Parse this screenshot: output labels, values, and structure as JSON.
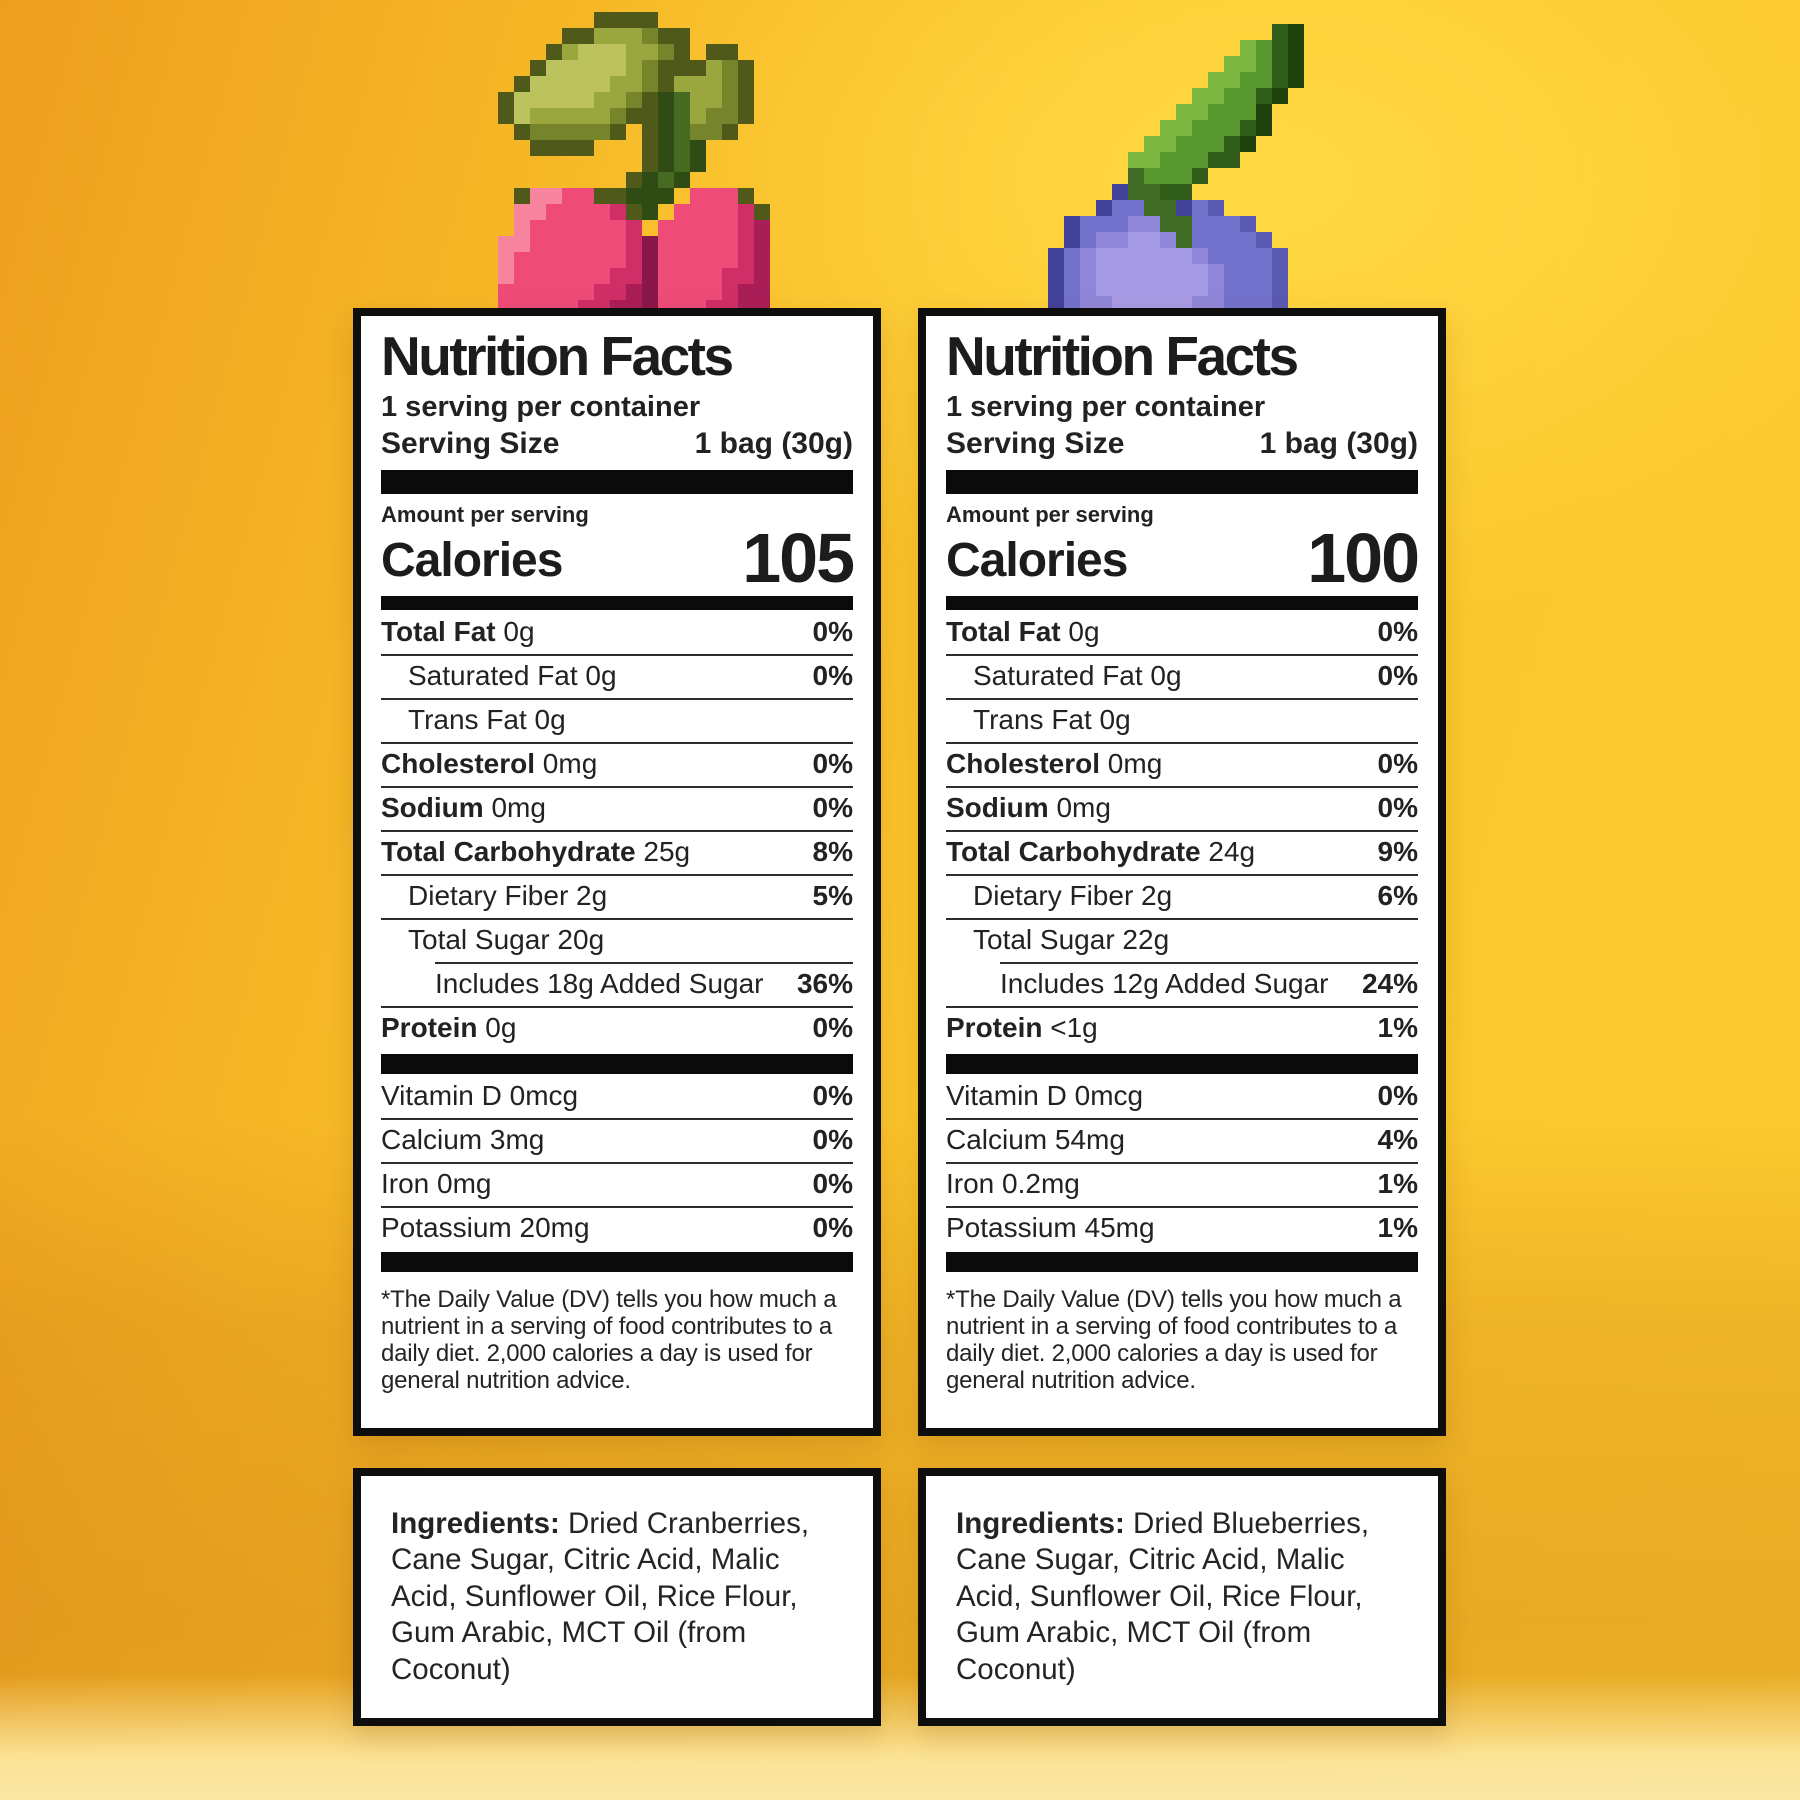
{
  "background": {
    "base_yellow": "#fcc72c",
    "deep_orange": "#ee9f1f",
    "floor_glow": "#fbe7a5"
  },
  "labels": [
    {
      "id": "cranberry",
      "title": "Nutrition Facts",
      "servings_line": "1 serving per container",
      "serving_size_label": "Serving Size",
      "serving_size_value": "1 bag (30g)",
      "amount_label": "Amount per serving",
      "calories_label": "Calories",
      "calories_value": "105",
      "nutrients": [
        {
          "bold": "Total Fat",
          "rest": " 0g",
          "value": "0%",
          "indent": 0
        },
        {
          "text": "Saturated Fat 0g",
          "value": "0%",
          "indent": 1
        },
        {
          "text": "Trans Fat 0g",
          "value": "",
          "indent": 1
        },
        {
          "bold": "Cholesterol",
          "rest": " 0mg",
          "value": "0%",
          "indent": 0
        },
        {
          "bold": "Sodium",
          "rest": " 0mg",
          "value": "0%",
          "indent": 0
        },
        {
          "bold": "Total Carbohydrate",
          "rest": " 25g",
          "value": "8%",
          "indent": 0
        },
        {
          "text": "Dietary Fiber 2g",
          "value": "5%",
          "indent": 1
        },
        {
          "text": "Total Sugar 20g",
          "value": "",
          "indent": 1
        },
        {
          "text": "Includes 18g Added Sugar",
          "value": "36%",
          "indent": 2,
          "divider_indent": true
        },
        {
          "bold": "Protein",
          "rest": " 0g",
          "value": "0%",
          "indent": 0
        }
      ],
      "vitamins": [
        {
          "text": "Vitamin D 0mcg",
          "value": "0%"
        },
        {
          "text": "Calcium 3mg",
          "value": "0%"
        },
        {
          "text": "Iron 0mg",
          "value": "0%"
        },
        {
          "text": "Potassium 20mg",
          "value": "0%"
        }
      ],
      "footnote": "*The Daily Value (DV) tells you how much a nutrient in a serving of food contributes to a daily diet. 2,000 calories a day is used for general nutrition advice.",
      "ingredients_label": "Ingredients:",
      "ingredients_text": " Dried Cranberries, Cane Sugar, Citric Acid, Malic Acid, Sunflower Oil, Rice Flour, Gum Arabic, MCT Oil (from Coconut)"
    },
    {
      "id": "blueberry",
      "title": "Nutrition Facts",
      "servings_line": "1 serving per container",
      "serving_size_label": "Serving Size",
      "serving_size_value": "1 bag (30g)",
      "amount_label": "Amount per serving",
      "calories_label": "Calories",
      "calories_value": "100",
      "nutrients": [
        {
          "bold": "Total Fat",
          "rest": " 0g",
          "value": "0%",
          "indent": 0
        },
        {
          "text": "Saturated Fat 0g",
          "value": "0%",
          "indent": 1
        },
        {
          "text": "Trans Fat 0g",
          "value": "",
          "indent": 1
        },
        {
          "bold": "Cholesterol",
          "rest": " 0mg",
          "value": "0%",
          "indent": 0
        },
        {
          "bold": "Sodium",
          "rest": " 0mg",
          "value": "0%",
          "indent": 0
        },
        {
          "bold": "Total Carbohydrate",
          "rest": " 24g",
          "value": "9%",
          "indent": 0
        },
        {
          "text": "Dietary Fiber 2g",
          "value": "6%",
          "indent": 1
        },
        {
          "text": "Total Sugar 22g",
          "value": "",
          "indent": 1
        },
        {
          "text": "Includes 12g Added Sugar",
          "value": "24%",
          "indent": 2,
          "divider_indent": true
        },
        {
          "bold": "Protein",
          "rest": " <1g",
          "value": "1%",
          "indent": 0
        }
      ],
      "vitamins": [
        {
          "text": "Vitamin D 0mcg",
          "value": "0%"
        },
        {
          "text": "Calcium 54mg",
          "value": "4%"
        },
        {
          "text": "Iron 0.2mg",
          "value": "1%"
        },
        {
          "text": "Potassium 45mg",
          "value": "1%"
        }
      ],
      "footnote": "*The Daily Value (DV) tells you how much a nutrient in a serving of food contributes to a daily diet. 2,000 calories a day is used for general nutrition advice.",
      "ingredients_label": "Ingredients:",
      "ingredients_text": " Dried Blueberries, Cane Sugar, Citric Acid, Malic Acid, Sunflower Oil, Rice Flour, Gum Arabic, MCT Oil (from Coconut)"
    }
  ],
  "artwork": {
    "cherry": {
      "cell": 16,
      "palette": {
        "k": "#4f5a1a",
        "d": "#76842c",
        "m": "#9aa63e",
        "l": "#bcc25d",
        "s": "#2f4c15",
        "t": "#466a1f",
        "W": "#f785a0",
        "P": "#ee4b78",
        "R": "#d02e66",
        "M": "#a91e56",
        "X": "#8a174a"
      },
      "rows": [
        "......kkkk.......",
        "....kkmmmdkk.....",
        "...kmlllmmdk.kk..",
        "..klllllmdkkkmdk.",
        ".klllllmmdkmmmdk.",
        "klllllmmdkstmmdk.",
        "klmmmmmdkkstmddk.",
        ".kdddddk.kstddk..",
        "..kkkk...ksts....",
        ".........ksts....",
        "........ksts.....",
        ".kWWPPkksss.PPPk.",
        ".WWPPPPRks.PPPPRk",
        ".WPPPPPPR.PPPPPRM",
        "WWPPPPPPRXPPPPPRM",
        "WPPPPPPPRXPPPPPRM",
        "WPPPPPPRRXPPPPRRM",
        "PPPPPPRRMXPPPPRMM",
        "PPPPPRRMMXPPPRRMM"
      ]
    },
    "blueberry": {
      "cell": 16,
      "palette": {
        "E": "#1e430f",
        "e": "#2f5c18",
        "g": "#58962e",
        "G": "#7cb841",
        "S": "#3f6b24",
        "D": "#42429a",
        "b": "#5a5ab2",
        "B": "#7272cc",
        "V": "#8f86d8",
        "H": "#a79ae4"
      },
      "rows": [
        "..............eE",
        "............GgeE",
        "...........GGgeE",
        "..........GGggeE",
        ".........GGggeE.",
        "........GGgggE..",
        ".......GGgggeE..",
        "......GGgggeE...",
        ".....GGgggee....",
        ".....Sggge......",
        "....DSSee.......",
        "...DBBSSDBb.....",
        ".DBBBVVSSBBBb...",
        ".DBVVHHVSBBBBb..",
        "DBVHHHHHHVBBBBb.",
        "DBVHHHHHHHVBBBb.",
        "DBVHHHHHHHVBBBb.",
        "DBVVHHHHHVVBBBb."
      ]
    }
  }
}
